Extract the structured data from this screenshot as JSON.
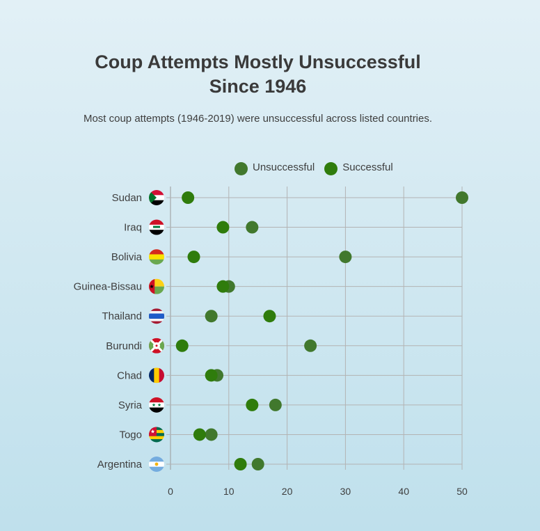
{
  "chart_data": {
    "type": "scatter",
    "title": [
      "Coup Attempts Mostly Unsuccessful",
      "Since 1946"
    ],
    "subtitle": "Most coup attempts (1946-2019) were unsuccessful across listed countries.",
    "categories": [
      "Sudan",
      "Iraq",
      "Bolivia",
      "Guinea-Bissau",
      "Thailand",
      "Burundi",
      "Chad",
      "Syria",
      "Togo",
      "Argentina"
    ],
    "series": [
      {
        "name": "Unsuccessful",
        "color": "#41782d",
        "values": [
          50,
          14,
          30,
          10,
          7,
          24,
          8,
          18,
          7,
          15
        ]
      },
      {
        "name": "Successful",
        "color": "#2f7c0c",
        "values": [
          3,
          9,
          4,
          9,
          17,
          2,
          7,
          14,
          5,
          12
        ]
      }
    ],
    "x_ticks": [
      0,
      10,
      20,
      30,
      40,
      50
    ],
    "xlim": [
      0,
      50
    ],
    "grid": true,
    "legend_position": "top"
  }
}
